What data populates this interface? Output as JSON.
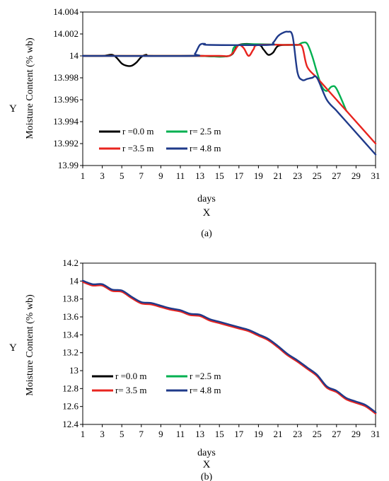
{
  "chart_data": [
    {
      "type": "line",
      "caption": "(a)",
      "xlabel": "days",
      "ylabel": "Moisture Content (% wb)",
      "x_letter": "X",
      "y_letter": "Y",
      "xlim": [
        1,
        31
      ],
      "ylim": [
        13.99,
        14.004
      ],
      "x_ticks": [
        "1",
        "3",
        "5",
        "7",
        "9",
        "11",
        "13",
        "15",
        "17",
        "19",
        "21",
        "23",
        "25",
        "27",
        "29",
        "31"
      ],
      "y_ticks": [
        "13.99",
        "13.992",
        "13.994",
        "13.996",
        "13.998",
        "14",
        "14.002",
        "14.004"
      ],
      "grid": false,
      "legend_position": "bottom-left",
      "legend": [
        "r =0.0 m",
        "r= 2.5 m",
        "r =3.5 m",
        "r= 4.8 m"
      ],
      "series": [
        {
          "name": "r =0.0 m",
          "color": "#000000",
          "points": [
            [
              1,
              14.0
            ],
            [
              3,
              14.0
            ],
            [
              4,
              14.0001
            ],
            [
              4.5,
              13.9998
            ],
            [
              5,
              13.9993
            ],
            [
              5.5,
              13.9991
            ],
            [
              6,
              13.9991
            ],
            [
              6.5,
              13.9994
            ],
            [
              7,
              13.9999
            ],
            [
              7.5,
              14.0001
            ],
            [
              8,
              14.0
            ],
            [
              12,
              14.0
            ],
            [
              13,
              14.0
            ],
            [
              16,
              14.0
            ],
            [
              17,
              14.001
            ],
            [
              19,
              14.001
            ],
            [
              19.5,
              14.0006
            ],
            [
              20,
              14.0001
            ],
            [
              20.5,
              14.0003
            ],
            [
              21,
              14.0009
            ],
            [
              22,
              14.001
            ],
            [
              23,
              14.001
            ]
          ]
        },
        {
          "name": "r= 2.5 m",
          "color": "#00b050",
          "points": [
            [
              1,
              14.0
            ],
            [
              12,
              14.0
            ],
            [
              13,
              14.0
            ],
            [
              16,
              14.0
            ],
            [
              17,
              14.001
            ],
            [
              22,
              14.001
            ],
            [
              23,
              14.001
            ],
            [
              23.5,
              14.0012
            ],
            [
              24,
              14.0011
            ],
            [
              24.5,
              14.0
            ],
            [
              25,
              13.9985
            ],
            [
              25.5,
              13.9972
            ],
            [
              26,
              13.9968
            ],
            [
              26.5,
              13.9972
            ],
            [
              27,
              13.997
            ],
            [
              28,
              13.995
            ]
          ]
        },
        {
          "name": "r =3.5 m",
          "color": "#e8241f",
          "points": [
            [
              1,
              14.0
            ],
            [
              12,
              14.0
            ],
            [
              15,
              14.0
            ],
            [
              16,
              14.0
            ],
            [
              16.5,
              14.0004
            ],
            [
              17,
              14.001
            ],
            [
              17.5,
              14.0007
            ],
            [
              18,
              14.0
            ],
            [
              18.5,
              14.0006
            ],
            [
              19,
              14.001
            ],
            [
              22,
              14.001
            ],
            [
              23,
              14.001
            ],
            [
              23.5,
              14.0008
            ],
            [
              24,
              13.999
            ],
            [
              25,
              13.998
            ],
            [
              26,
              13.997
            ],
            [
              27,
              13.996
            ],
            [
              28,
              13.995
            ],
            [
              31,
              13.992
            ]
          ]
        },
        {
          "name": "r= 4.8 m",
          "color": "#1f3a8a",
          "points": [
            [
              1,
              14.0
            ],
            [
              12,
              14.0
            ],
            [
              12.5,
              14.0002
            ],
            [
              13,
              14.001
            ],
            [
              13.5,
              14.0011
            ],
            [
              14,
              14.001
            ],
            [
              20,
              14.001
            ],
            [
              20.5,
              14.0012
            ],
            [
              21,
              14.0018
            ],
            [
              21.5,
              14.0021
            ],
            [
              22,
              14.0022
            ],
            [
              22.5,
              14.0018
            ],
            [
              23,
              13.9985
            ],
            [
              23.5,
              13.9978
            ],
            [
              24,
              13.9979
            ],
            [
              24.5,
              13.998
            ],
            [
              25,
              13.998
            ],
            [
              26,
              13.996
            ],
            [
              27,
              13.995
            ],
            [
              28,
              13.994
            ],
            [
              31,
              13.991
            ]
          ]
        }
      ]
    },
    {
      "type": "line",
      "caption": "(b)",
      "xlabel": "days",
      "ylabel": "Moisture Content (% wb)",
      "x_letter": "X",
      "y_letter": "Y",
      "xlim": [
        1,
        31
      ],
      "ylim": [
        12.4,
        14.2
      ],
      "x_ticks": [
        "1",
        "3",
        "5",
        "7",
        "9",
        "11",
        "13",
        "15",
        "17",
        "19",
        "21",
        "23",
        "25",
        "27",
        "29",
        "31"
      ],
      "y_ticks": [
        "12.4",
        "12.6",
        "12.8",
        "13",
        "13.2",
        "13.4",
        "13.6",
        "13.8",
        "14",
        "14.2"
      ],
      "grid": false,
      "legend_position": "bottom-left",
      "legend": [
        "r =0.0 m",
        "r =2.5 m",
        "r= 3.5 m",
        "r= 4.8 m"
      ],
      "series": [
        {
          "name": "r =0.0 m",
          "color": "#000000",
          "points": [
            [
              1,
              14.0
            ],
            [
              2,
              13.96
            ],
            [
              3,
              13.96
            ],
            [
              4,
              13.9
            ],
            [
              5,
              13.89
            ],
            [
              6,
              13.82
            ],
            [
              7,
              13.76
            ],
            [
              8,
              13.75
            ],
            [
              9,
              13.72
            ],
            [
              10,
              13.69
            ],
            [
              11,
              13.67
            ],
            [
              12,
              13.63
            ],
            [
              13,
              13.62
            ],
            [
              14,
              13.57
            ],
            [
              15,
              13.54
            ],
            [
              16,
              13.51
            ],
            [
              17,
              13.48
            ],
            [
              18,
              13.45
            ],
            [
              19,
              13.4
            ],
            [
              20,
              13.35
            ],
            [
              21,
              13.27
            ],
            [
              22,
              13.18
            ],
            [
              23,
              13.11
            ],
            [
              24,
              13.03
            ],
            [
              25,
              12.95
            ],
            [
              26,
              12.82
            ],
            [
              27,
              12.77
            ],
            [
              28,
              12.69
            ],
            [
              29,
              12.65
            ],
            [
              30,
              12.61
            ],
            [
              31,
              12.53
            ]
          ]
        },
        {
          "name": "r =2.5 m",
          "color": "#00b050",
          "points": [
            [
              1,
              14.0
            ],
            [
              2,
              13.96
            ],
            [
              3,
              13.96
            ],
            [
              4,
              13.9
            ],
            [
              5,
              13.89
            ],
            [
              6,
              13.82
            ],
            [
              7,
              13.76
            ],
            [
              8,
              13.75
            ],
            [
              9,
              13.72
            ],
            [
              10,
              13.69
            ],
            [
              11,
              13.67
            ],
            [
              12,
              13.63
            ],
            [
              13,
              13.62
            ],
            [
              14,
              13.57
            ],
            [
              15,
              13.54
            ],
            [
              16,
              13.51
            ],
            [
              17,
              13.48
            ],
            [
              18,
              13.45
            ],
            [
              19,
              13.4
            ],
            [
              20,
              13.35
            ],
            [
              21,
              13.27
            ],
            [
              22,
              13.18
            ],
            [
              23,
              13.11
            ],
            [
              24,
              13.03
            ],
            [
              25,
              12.95
            ],
            [
              26,
              12.82
            ],
            [
              27,
              12.77
            ],
            [
              28,
              12.69
            ],
            [
              29,
              12.65
            ],
            [
              30,
              12.61
            ],
            [
              31,
              12.53
            ]
          ]
        },
        {
          "name": "r= 3.5 m",
          "color": "#e8241f",
          "points": [
            [
              1,
              13.99
            ],
            [
              2,
              13.95
            ],
            [
              3,
              13.95
            ],
            [
              4,
              13.89
            ],
            [
              5,
              13.88
            ],
            [
              6,
              13.81
            ],
            [
              7,
              13.75
            ],
            [
              8,
              13.74
            ],
            [
              9,
              13.71
            ],
            [
              10,
              13.68
            ],
            [
              11,
              13.66
            ],
            [
              12,
              13.62
            ],
            [
              13,
              13.61
            ],
            [
              14,
              13.56
            ],
            [
              15,
              13.53
            ],
            [
              16,
              13.5
            ],
            [
              17,
              13.47
            ],
            [
              18,
              13.44
            ],
            [
              19,
              13.39
            ],
            [
              20,
              13.34
            ],
            [
              21,
              13.26
            ],
            [
              22,
              13.17
            ],
            [
              23,
              13.1
            ],
            [
              24,
              13.02
            ],
            [
              25,
              12.94
            ],
            [
              26,
              12.81
            ],
            [
              27,
              12.76
            ],
            [
              28,
              12.68
            ],
            [
              29,
              12.64
            ],
            [
              30,
              12.6
            ],
            [
              31,
              12.52
            ]
          ]
        },
        {
          "name": "r= 4.8 m",
          "color": "#1f3a8a",
          "points": [
            [
              1,
              14.005
            ],
            [
              2,
              13.965
            ],
            [
              3,
              13.965
            ],
            [
              4,
              13.905
            ],
            [
              5,
              13.895
            ],
            [
              6,
              13.825
            ],
            [
              7,
              13.765
            ],
            [
              8,
              13.755
            ],
            [
              9,
              13.725
            ],
            [
              10,
              13.695
            ],
            [
              11,
              13.675
            ],
            [
              12,
              13.635
            ],
            [
              13,
              13.625
            ],
            [
              14,
              13.575
            ],
            [
              15,
              13.545
            ],
            [
              16,
              13.515
            ],
            [
              17,
              13.485
            ],
            [
              18,
              13.455
            ],
            [
              19,
              13.405
            ],
            [
              20,
              13.355
            ],
            [
              21,
              13.275
            ],
            [
              22,
              13.185
            ],
            [
              23,
              13.115
            ],
            [
              24,
              13.035
            ],
            [
              25,
              12.955
            ],
            [
              26,
              12.825
            ],
            [
              27,
              12.775
            ],
            [
              28,
              12.695
            ],
            [
              29,
              12.655
            ],
            [
              30,
              12.615
            ],
            [
              31,
              12.535
            ]
          ]
        }
      ]
    }
  ]
}
